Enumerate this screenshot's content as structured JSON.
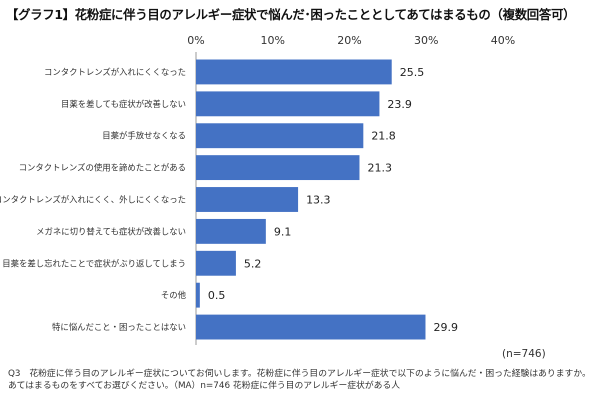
{
  "chart_data": {
    "type": "bar",
    "orientation": "horizontal",
    "title": "【グラフ1】花粉症に伴う目のアレルギー症状で悩んだ･困ったこととしてあてはまるもの（複数回答可）",
    "categories": [
      "コンタクトレンズが入れにくくなった",
      "目薬を差しても症状が改善しない",
      "目薬が手放せなくなる",
      "コンタクトレンズの使用を諦めたことがある",
      "コンタクトレンズが入れにくく、外しにくくなった",
      "メガネに切り替えても症状が改善しない",
      "目薬を差し忘れたことで症状がぶり返してしまう",
      "その他",
      "特に悩んだこと・困ったことはない"
    ],
    "values": [
      25.5,
      23.9,
      21.8,
      21.3,
      13.3,
      9.1,
      5.2,
      0.5,
      29.9
    ],
    "value_labels": [
      "25.5",
      "23.9",
      "21.8",
      "21.3",
      "13.3",
      "9.1",
      "5.2",
      "0.5",
      "29.9"
    ],
    "xlim": [
      0,
      40
    ],
    "ticks": [
      0,
      10,
      20,
      30,
      40
    ],
    "tick_labels": [
      "0%",
      "10%",
      "20%",
      "30%",
      "40%"
    ],
    "axis_position": "top",
    "grid": false,
    "bar_color": "#4472c4",
    "sample_size": "(n=746)"
  },
  "footnote": {
    "line1": "Q3　花粉症に伴う目のアレルギー症状についてお伺いします。花粉症に伴う目のアレルギー症状で以下のように悩んだ・困った経験はありますか。",
    "line2": "あてはまるものをすべてお選びください。（MA）n=746 花粉症に伴う目のアレルギー症状がある人"
  }
}
